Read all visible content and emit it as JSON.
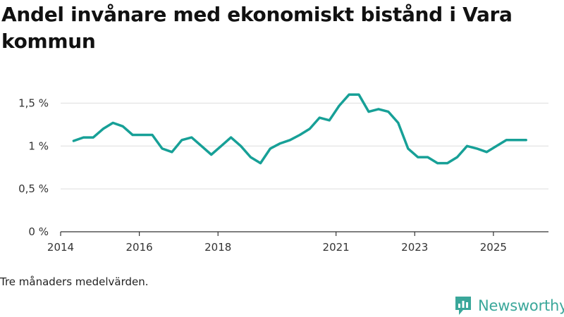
{
  "title": "Andel invånare med ekonomiskt bistånd i Vara kommun",
  "footnote": "Tre månaders medelvärden.",
  "brand": {
    "name": "Newsworthy",
    "icon": "newsworthy-logo-icon",
    "color": "#3aa79a"
  },
  "colors": {
    "line": "#17a097",
    "grid": "#dddddd",
    "axis": "#333333"
  },
  "chart_data": {
    "type": "line",
    "title": "Andel invånare med ekonomiskt bistånd i Vara kommun",
    "xlabel": "",
    "ylabel": "",
    "ylim": [
      0,
      1.75
    ],
    "yticks": [
      {
        "value": 0,
        "label": "0 %"
      },
      {
        "value": 0.5,
        "label": "0,5 %"
      },
      {
        "value": 1,
        "label": "1 %"
      },
      {
        "value": 1.5,
        "label": "1,5 %"
      }
    ],
    "xlim": [
      2014.0,
      2026.4
    ],
    "xticks": [
      {
        "value": 2014,
        "label": "2014"
      },
      {
        "value": 2016,
        "label": "2016"
      },
      {
        "value": 2018,
        "label": "2018"
      },
      {
        "value": 2021,
        "label": "2021"
      },
      {
        "value": 2023,
        "label": "2023"
      },
      {
        "value": 2025,
        "label": "2025"
      }
    ],
    "series": [
      {
        "name": "Andel invånare med ekonomiskt bistånd",
        "x": [
          2014.33,
          2014.58,
          2014.83,
          2015.08,
          2015.33,
          2015.58,
          2015.83,
          2016.08,
          2016.33,
          2016.58,
          2016.83,
          2017.08,
          2017.33,
          2017.58,
          2017.83,
          2018.08,
          2018.33,
          2018.58,
          2018.83,
          2019.08,
          2019.33,
          2019.58,
          2019.83,
          2020.08,
          2020.33,
          2020.58,
          2020.83,
          2021.08,
          2021.33,
          2021.58,
          2021.83,
          2022.08,
          2022.33,
          2022.58,
          2022.83,
          2023.08,
          2023.33,
          2023.58,
          2023.83,
          2024.08,
          2024.33,
          2024.58,
          2024.83,
          2025.08,
          2025.33,
          2025.58,
          2025.83
        ],
        "values": [
          1.06,
          1.1,
          1.1,
          1.2,
          1.27,
          1.23,
          1.13,
          1.13,
          1.13,
          0.97,
          0.93,
          1.07,
          1.1,
          1.0,
          0.9,
          1.0,
          1.1,
          1.0,
          0.87,
          0.8,
          0.97,
          1.03,
          1.07,
          1.13,
          1.2,
          1.33,
          1.3,
          1.47,
          1.6,
          1.6,
          1.4,
          1.43,
          1.4,
          1.27,
          0.97,
          0.87,
          0.87,
          0.8,
          0.8,
          0.87,
          1.0,
          0.97,
          0.93,
          1.0,
          1.07,
          1.07,
          1.07
        ]
      }
    ],
    "grid": true,
    "legend": "none"
  }
}
